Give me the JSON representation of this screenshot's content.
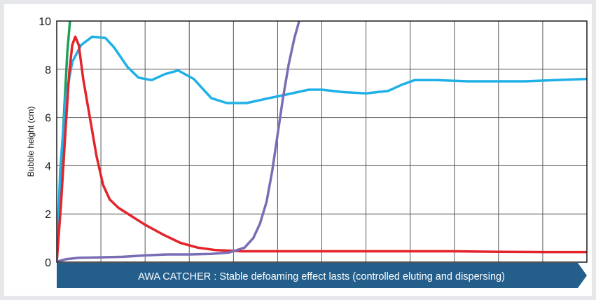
{
  "chart_data": {
    "type": "line",
    "title": "",
    "xlabel": "",
    "ylabel": "Bubble height (cm)",
    "ylim": [
      0,
      10
    ],
    "xlim": [
      0,
      12
    ],
    "yticks": [
      0,
      2,
      4,
      6,
      8,
      10
    ],
    "grid": true,
    "legend": "none",
    "banner_text": "AWA CATCHER : Stable defoaming effect lasts (controlled eluting and dispersing)",
    "colors": {
      "banner": "#245f8c",
      "axis": "#1a1a1a",
      "grid": "#555555"
    },
    "series": [
      {
        "color": "#1ea05a",
        "points": [
          [
            0,
            0
          ],
          [
            0.08,
            3
          ],
          [
            0.16,
            6
          ],
          [
            0.24,
            8.7
          ],
          [
            0.3,
            10
          ]
        ]
      },
      {
        "color": "#1fb1e6",
        "points": [
          [
            0,
            0
          ],
          [
            0.08,
            3.8
          ],
          [
            0.2,
            6.8
          ],
          [
            0.35,
            8.3
          ],
          [
            0.55,
            9.0
          ],
          [
            0.8,
            9.35
          ],
          [
            1.1,
            9.3
          ],
          [
            1.3,
            8.9
          ],
          [
            1.6,
            8.1
          ],
          [
            1.85,
            7.65
          ],
          [
            2.15,
            7.55
          ],
          [
            2.45,
            7.8
          ],
          [
            2.75,
            7.95
          ],
          [
            3.1,
            7.6
          ],
          [
            3.5,
            6.8
          ],
          [
            3.85,
            6.6
          ],
          [
            4.3,
            6.6
          ],
          [
            4.8,
            6.8
          ],
          [
            5.2,
            6.95
          ],
          [
            5.7,
            7.15
          ],
          [
            6.0,
            7.15
          ],
          [
            6.5,
            7.05
          ],
          [
            7.0,
            7.0
          ],
          [
            7.5,
            7.1
          ],
          [
            7.8,
            7.35
          ],
          [
            8.1,
            7.55
          ],
          [
            8.6,
            7.55
          ],
          [
            9.3,
            7.5
          ],
          [
            10.0,
            7.5
          ],
          [
            10.6,
            7.5
          ],
          [
            11.3,
            7.55
          ],
          [
            12,
            7.6
          ]
        ]
      },
      {
        "color": "#e3242b",
        "points": [
          [
            0,
            0
          ],
          [
            0.1,
            2.5
          ],
          [
            0.2,
            5.5
          ],
          [
            0.28,
            7.8
          ],
          [
            0.35,
            9.0
          ],
          [
            0.42,
            9.35
          ],
          [
            0.5,
            9.0
          ],
          [
            0.6,
            7.6
          ],
          [
            0.75,
            6.0
          ],
          [
            0.9,
            4.4
          ],
          [
            1.05,
            3.2
          ],
          [
            1.2,
            2.6
          ],
          [
            1.4,
            2.25
          ],
          [
            1.7,
            1.9
          ],
          [
            2.0,
            1.55
          ],
          [
            2.4,
            1.15
          ],
          [
            2.8,
            0.8
          ],
          [
            3.2,
            0.6
          ],
          [
            3.6,
            0.5
          ],
          [
            4.2,
            0.45
          ],
          [
            5.0,
            0.45
          ],
          [
            6.0,
            0.45
          ],
          [
            7.0,
            0.45
          ],
          [
            8.0,
            0.45
          ],
          [
            9.0,
            0.45
          ],
          [
            10.0,
            0.43
          ],
          [
            11.0,
            0.42
          ],
          [
            12,
            0.42
          ]
        ]
      },
      {
        "color": "#7a6db5",
        "points": [
          [
            0,
            0.02
          ],
          [
            0.2,
            0.12
          ],
          [
            0.5,
            0.18
          ],
          [
            1.0,
            0.2
          ],
          [
            1.5,
            0.22
          ],
          [
            2.0,
            0.28
          ],
          [
            2.5,
            0.32
          ],
          [
            3.0,
            0.32
          ],
          [
            3.5,
            0.34
          ],
          [
            3.9,
            0.4
          ],
          [
            4.25,
            0.6
          ],
          [
            4.45,
            1.0
          ],
          [
            4.6,
            1.6
          ],
          [
            4.75,
            2.5
          ],
          [
            4.88,
            3.8
          ],
          [
            5.0,
            5.3
          ],
          [
            5.12,
            6.8
          ],
          [
            5.25,
            8.2
          ],
          [
            5.38,
            9.3
          ],
          [
            5.48,
            9.95
          ]
        ]
      }
    ]
  }
}
